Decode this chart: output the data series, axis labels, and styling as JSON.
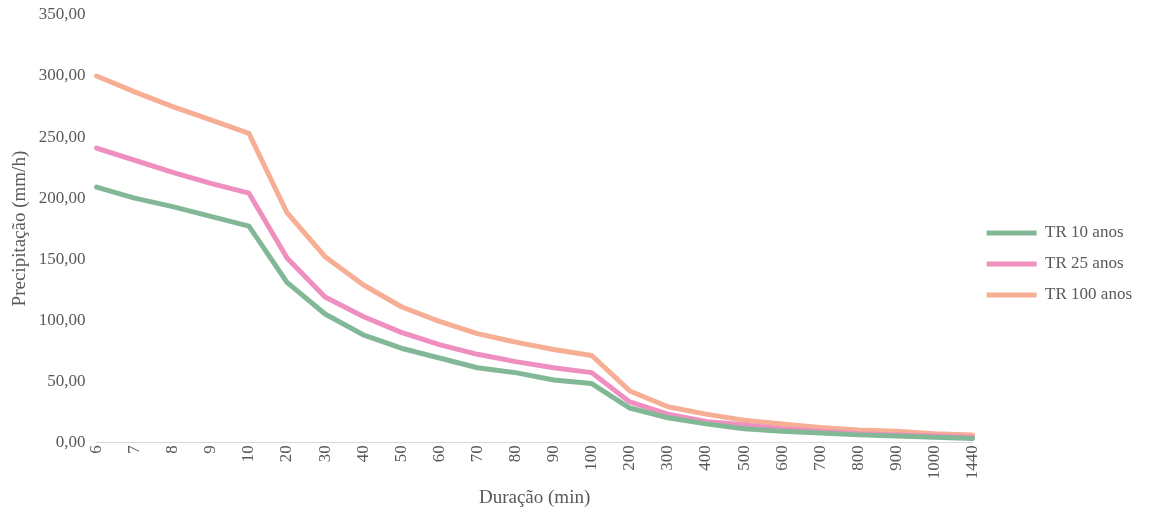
{
  "chart_data": {
    "type": "line",
    "xlabel": "Duração (min)",
    "ylabel": "Precipitação (mm/h)",
    "categories": [
      "6",
      "7",
      "8",
      "9",
      "10",
      "20",
      "30",
      "40",
      "50",
      "60",
      "70",
      "80",
      "90",
      "100",
      "200",
      "300",
      "400",
      "500",
      "600",
      "700",
      "800",
      "900",
      "1000",
      "1440"
    ],
    "ylim": [
      0,
      350
    ],
    "yticks": [
      {
        "value": 0,
        "label": "0,00"
      },
      {
        "value": 50,
        "label": "50,00"
      },
      {
        "value": 100,
        "label": "100,00"
      },
      {
        "value": 150,
        "label": "150,00"
      },
      {
        "value": 200,
        "label": "200,00"
      },
      {
        "value": 250,
        "label": "250,00"
      },
      {
        "value": 300,
        "label": "300,00"
      },
      {
        "value": 350,
        "label": "350,00"
      }
    ],
    "legend": "right",
    "marker": "none",
    "line_style": "solid",
    "series": [
      {
        "name": "TR 10 anos",
        "color": "#82b896",
        "values": [
          209,
          200,
          193,
          185,
          177,
          131,
          105,
          88,
          77,
          69,
          61,
          57,
          51,
          48,
          28,
          20,
          15,
          11,
          9,
          7.5,
          6,
          5,
          4,
          3
        ]
      },
      {
        "name": "TR 25 anos",
        "color": "#ee8fc0",
        "values": [
          241,
          231,
          221,
          212,
          204,
          151,
          119,
          103,
          90,
          80,
          72,
          66,
          61,
          57,
          33,
          23,
          17,
          14,
          11,
          9,
          7,
          6,
          5,
          4
        ]
      },
      {
        "name": "TR 100 anos",
        "color": "#f6ae94",
        "values": [
          300,
          287,
          275,
          264,
          253,
          188,
          152,
          129,
          111,
          99,
          89,
          82,
          76,
          71,
          42,
          29,
          23,
          18,
          15,
          12,
          10,
          9,
          7,
          6
        ]
      }
    ]
  }
}
